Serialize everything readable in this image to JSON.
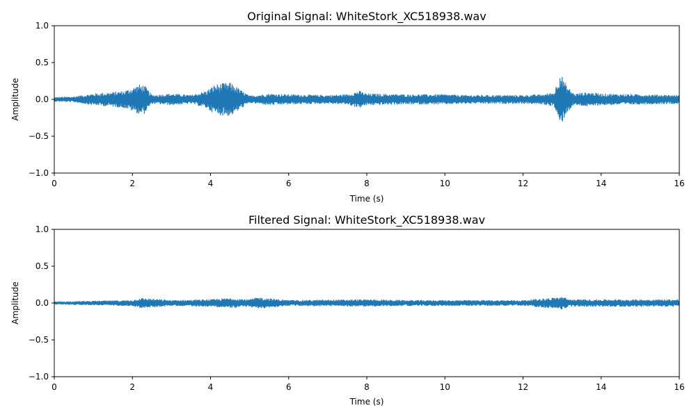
{
  "chart_data": [
    {
      "type": "line",
      "title": "Original Signal: WhiteStork_XC518938.wav",
      "xlabel": "Time (s)",
      "ylabel": "Amplitude",
      "xlim": [
        0,
        16
      ],
      "ylim": [
        -1.0,
        1.0
      ],
      "xticks": [
        "0",
        "2",
        "4",
        "6",
        "8",
        "10",
        "12",
        "14",
        "16"
      ],
      "yticks": [
        "1.0",
        "0.5",
        "0.0",
        "−0.5",
        "−1.0"
      ],
      "ytick_values": [
        1.0,
        0.5,
        0.0,
        -0.5,
        -1.0
      ],
      "xtick_values": [
        0,
        2,
        4,
        6,
        8,
        10,
        12,
        14,
        16
      ],
      "grid": false,
      "series": [
        {
          "color": "#1f77b4",
          "envelope": {
            "x": [
              0,
              0.5,
              1.0,
              1.5,
              1.8,
              2.0,
              2.15,
              2.3,
              2.5,
              3.0,
              3.5,
              3.9,
              4.1,
              4.3,
              4.5,
              4.6,
              4.8,
              5.0,
              5.5,
              6.0,
              7.0,
              7.5,
              7.8,
              8.0,
              9.0,
              10.0,
              10.5,
              11.0,
              12.0,
              12.5,
              12.8,
              12.95,
              13.1,
              13.3,
              13.7,
              14.0,
              15.0,
              16.0
            ],
            "y": [
              0.03,
              0.04,
              0.08,
              0.1,
              0.12,
              0.16,
              0.2,
              0.2,
              0.06,
              0.08,
              0.06,
              0.12,
              0.2,
              0.22,
              0.23,
              0.2,
              0.12,
              0.05,
              0.08,
              0.07,
              0.06,
              0.07,
              0.12,
              0.08,
              0.07,
              0.07,
              0.06,
              0.06,
              0.06,
              0.07,
              0.1,
              0.38,
              0.2,
              0.08,
              0.1,
              0.08,
              0.07,
              0.06
            ]
          }
        }
      ]
    },
    {
      "type": "line",
      "title": "Filtered Signal: WhiteStork_XC518938.wav",
      "xlabel": "Time (s)",
      "ylabel": "Amplitude",
      "xlim": [
        0,
        16
      ],
      "ylim": [
        -1.0,
        1.0
      ],
      "xticks": [
        "0",
        "2",
        "4",
        "6",
        "8",
        "10",
        "12",
        "14",
        "16"
      ],
      "yticks": [
        "1.0",
        "0.5",
        "0.0",
        "−0.5",
        "−1.0"
      ],
      "ytick_values": [
        1.0,
        0.5,
        0.0,
        -0.5,
        -1.0
      ],
      "xtick_values": [
        0,
        2,
        4,
        6,
        8,
        10,
        12,
        14,
        16
      ],
      "grid": false,
      "series": [
        {
          "color": "#1f77b4",
          "envelope": {
            "x": [
              0,
              1.0,
              2.0,
              2.2,
              3.0,
              4.0,
              4.5,
              5.0,
              5.2,
              6.0,
              8.0,
              9.0,
              10.0,
              12.0,
              12.9,
              13.0,
              13.2,
              14.0,
              16.0
            ],
            "y": [
              0.02,
              0.03,
              0.04,
              0.07,
              0.04,
              0.05,
              0.07,
              0.05,
              0.08,
              0.04,
              0.05,
              0.04,
              0.04,
              0.04,
              0.08,
              0.09,
              0.05,
              0.05,
              0.05
            ]
          }
        }
      ]
    }
  ]
}
